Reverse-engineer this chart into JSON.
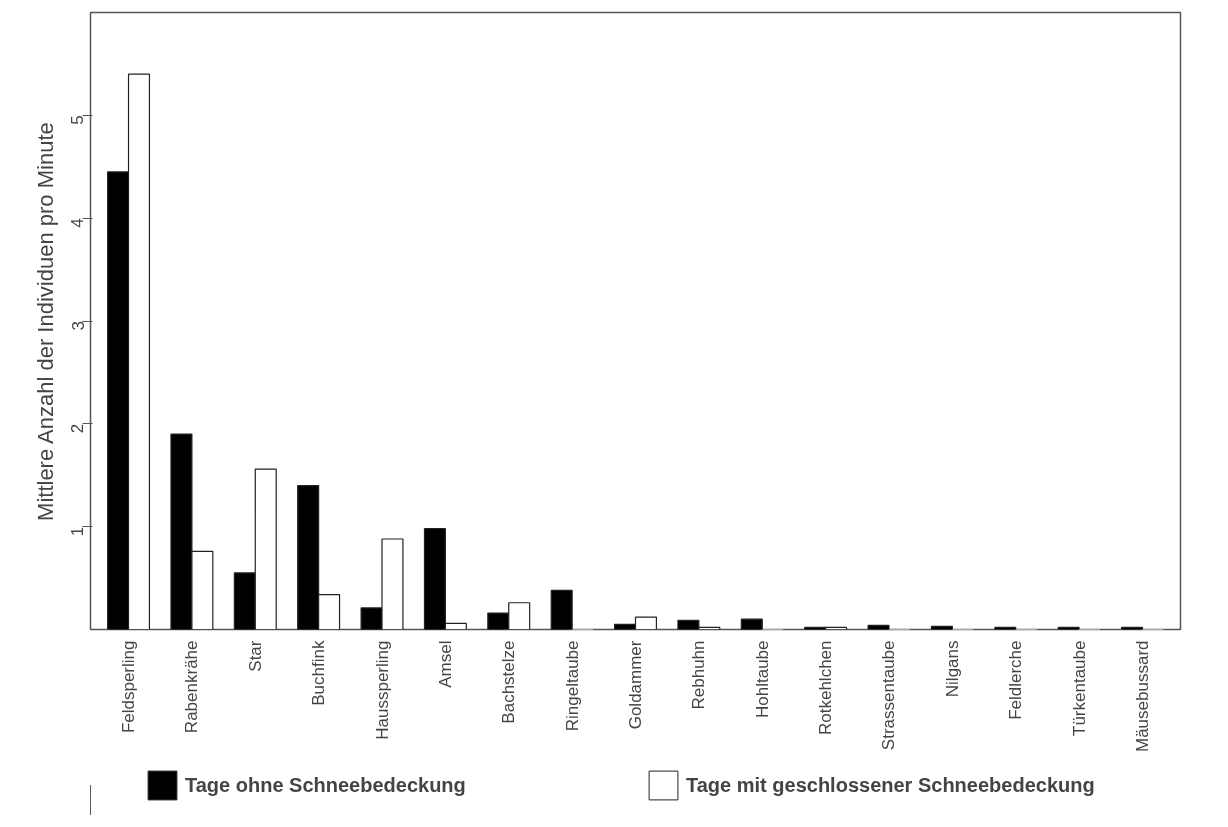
{
  "chart_data": {
    "type": "bar",
    "ylabel": "Mittlere Anzahl der Individuen pro Minute",
    "categories": [
      "Feldsperling",
      "Rabenkrähe",
      "Star",
      "Buchfink",
      "Haussperling",
      "Amsel",
      "Bachstelze",
      "Ringeltaube",
      "Goldammer",
      "Rebhuhn",
      "Hohltaube",
      "Rotkehlchen",
      "Strassentaube",
      "Nilgans",
      "Feldlerche",
      "Türkentaube",
      "Mäusebussard"
    ],
    "series": [
      {
        "name": "Tage ohne Schneebedeckung",
        "color": "#000000",
        "values": [
          4.45,
          1.9,
          0.55,
          1.4,
          0.21,
          0.98,
          0.16,
          0.38,
          0.05,
          0.09,
          0.1,
          0.02,
          0.04,
          0.03,
          0.02,
          0.02,
          0.02
        ]
      },
      {
        "name": "Tage mit geschlossener Schneebedeckung",
        "color": "#ffffff",
        "values": [
          5.4,
          0.76,
          1.56,
          0.34,
          0.88,
          0.06,
          0.26,
          0,
          0.12,
          0.02,
          0,
          0.02,
          0,
          0,
          0,
          0,
          0
        ]
      }
    ],
    "ylim": [
      0,
      6
    ],
    "yticks": [
      1,
      2,
      3,
      4,
      5
    ],
    "legend": "bottom",
    "grid": false
  }
}
